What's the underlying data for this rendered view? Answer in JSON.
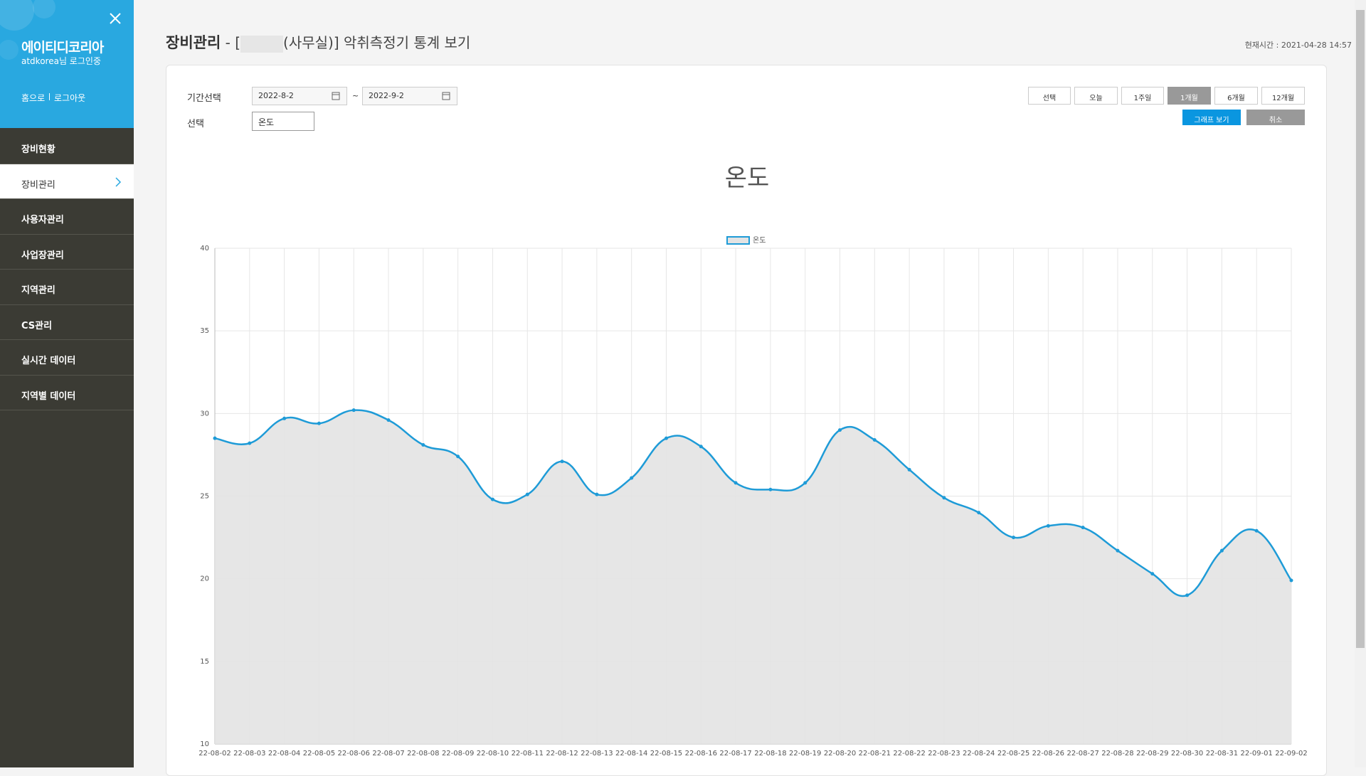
{
  "sidebar": {
    "brand": "에이티디코리아",
    "user": "atdkorea님 로그인중",
    "home": "홈으로",
    "logout": "로그아웃",
    "menu": [
      "장비현황",
      "장비관리",
      "사용자관리",
      "사업장관리",
      "지역관리",
      "CS관리",
      "실시간 데이터",
      "지역별 데이터"
    ]
  },
  "header": {
    "title": "장비관리",
    "title_prefix": "- [",
    "title_suffix": "(사무실)] 악취측정기 통계 보기",
    "time": "현재시간 : 2021-04-28 14:57"
  },
  "form": {
    "period_label": "기간선택",
    "start": "2022-8-2",
    "sep": "~",
    "end": "2022-9-2",
    "select_label": "선택",
    "select_value": "온도",
    "ranges": [
      "선택",
      "오늘",
      "1주일",
      "1개월",
      "6개월",
      "12개월"
    ],
    "view": "그래프 보기",
    "cancel": "취소"
  },
  "chart_data": {
    "type": "line",
    "title": "온도",
    "categories": [
      "22-08-02",
      "22-08-03",
      "22-08-04",
      "22-08-05",
      "22-08-06",
      "22-08-07",
      "22-08-08",
      "22-08-09",
      "22-08-10",
      "22-08-11",
      "22-08-12",
      "22-08-13",
      "22-08-14",
      "22-08-15",
      "22-08-16",
      "22-08-17",
      "22-08-18",
      "22-08-19",
      "22-08-20",
      "22-08-21",
      "22-08-22",
      "22-08-23",
      "22-08-24",
      "22-08-25",
      "22-08-26",
      "22-08-27",
      "22-08-28",
      "22-08-29",
      "22-08-30",
      "22-08-31",
      "22-09-01",
      "22-09-02"
    ],
    "series": [
      {
        "name": "온도",
        "color": "#1e9bd7",
        "fill": "#e3e3e3",
        "values": [
          28.5,
          28.2,
          29.7,
          29.4,
          30.2,
          29.6,
          28.1,
          27.4,
          24.8,
          25.1,
          27.1,
          25.1,
          26.1,
          28.5,
          28.0,
          25.8,
          25.4,
          25.8,
          29.0,
          28.4,
          26.6,
          24.9,
          24.0,
          22.5,
          23.2,
          23.1,
          21.7,
          20.3,
          19.0,
          21.7,
          22.9,
          19.9
        ]
      }
    ],
    "ylim": [
      10,
      40
    ],
    "yticks": [
      10,
      15,
      20,
      25,
      30,
      35,
      40
    ],
    "grid": true,
    "legend": "top"
  }
}
